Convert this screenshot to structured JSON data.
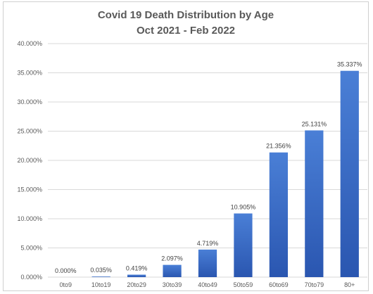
{
  "chart_data": {
    "type": "bar",
    "title": "Covid 19 Death Distribution by Age",
    "subtitle": "Oct 2021 - Feb 2022",
    "xlabel": "",
    "ylabel": "",
    "categories": [
      "0to9",
      "10to19",
      "20to29",
      "30to39",
      "40to49",
      "50to59",
      "60to69",
      "70to79",
      "80+"
    ],
    "values": [
      0.0,
      0.035,
      0.419,
      2.097,
      4.719,
      10.905,
      21.356,
      25.131,
      35.337
    ],
    "data_labels": [
      "0.000%",
      "0.035%",
      "0.419%",
      "2.097%",
      "4.719%",
      "10.905%",
      "21.356%",
      "25.131%",
      "35.337%"
    ],
    "ylim": [
      0,
      40
    ],
    "yticks": [
      0,
      5,
      10,
      15,
      20,
      25,
      30,
      35,
      40
    ],
    "ytick_labels": [
      "0.000%",
      "5.000%",
      "10.000%",
      "15.000%",
      "20.000%",
      "25.000%",
      "30.000%",
      "35.000%",
      "40.000%"
    ],
    "grid": true,
    "legend": "none",
    "bar_color_top": "#4a7fd6",
    "bar_color_bottom": "#2a56b0"
  }
}
